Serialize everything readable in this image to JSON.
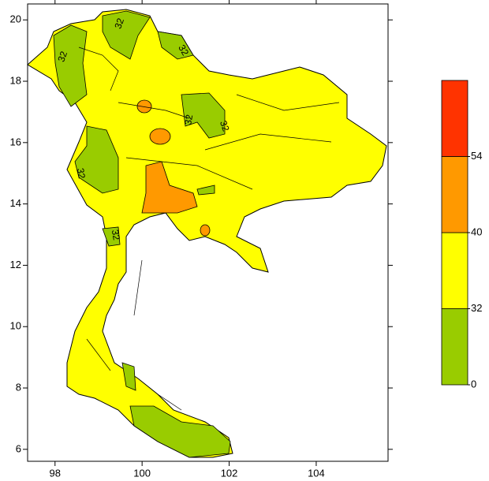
{
  "map": {
    "xlim": [
      97.37,
      105.65
    ],
    "ylim": [
      5.61,
      20.52
    ],
    "xticks": [
      98,
      100,
      102,
      104
    ],
    "yticks": [
      6,
      8,
      10,
      12,
      14,
      16,
      18,
      20
    ],
    "contour_labels": [
      "32",
      "32",
      "32",
      "32",
      "32",
      "32",
      "32"
    ]
  },
  "colorbar": {
    "levels": [
      0,
      32,
      40,
      54
    ],
    "colors": [
      "#99cc00",
      "#ffff00",
      "#ff9900",
      "#ff3300"
    ]
  }
}
